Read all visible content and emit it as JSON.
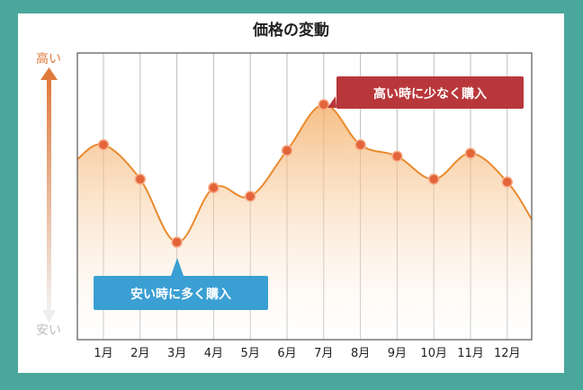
{
  "colors": {
    "background": "#4aa79b",
    "line": "#e98a2e",
    "point": "#e4643a",
    "fill_top": "#f3b06a",
    "axis_high": "#e07a3c",
    "axis_low": "#cfcfcf",
    "callout_high": "#b8373a",
    "callout_low": "#3a9fd3"
  },
  "chart_data": {
    "type": "area",
    "title": "価格の変動",
    "x": [
      "1月",
      "2月",
      "3月",
      "4月",
      "5月",
      "6月",
      "7月",
      "8月",
      "9月",
      "10月",
      "11月",
      "12月"
    ],
    "values": [
      6.8,
      5.6,
      3.4,
      5.3,
      5.0,
      6.6,
      8.2,
      6.8,
      6.4,
      5.6,
      6.5,
      5.5
    ],
    "ylim": [
      0,
      10
    ],
    "y_axis_top_label": "高い",
    "y_axis_bottom_label": "安い",
    "grid": true,
    "annotations": {
      "high": {
        "text": "高い時に少なく購入",
        "month": "7月"
      },
      "low": {
        "text": "安い時に多く購入",
        "month": "3月"
      }
    }
  }
}
